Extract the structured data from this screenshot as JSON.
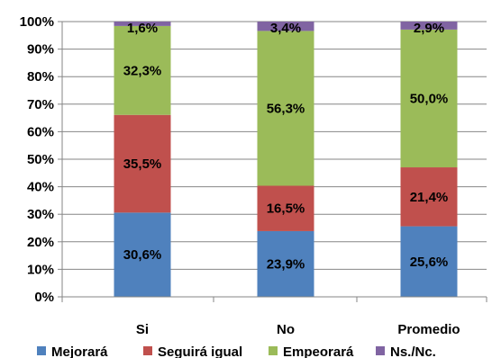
{
  "chart_data": {
    "type": "bar",
    "stacked": true,
    "percent": true,
    "categories": [
      "Si",
      "No",
      "Promedio"
    ],
    "series": [
      {
        "name": "Mejorará",
        "color": "#4f81bd",
        "values": [
          30.6,
          23.9,
          25.6
        ],
        "labels": [
          "30,6%",
          "23,9%",
          "25,6%"
        ]
      },
      {
        "name": "Seguirá igual",
        "color": "#c0504d",
        "values": [
          35.5,
          16.5,
          21.4
        ],
        "labels": [
          "35,5%",
          "16,5%",
          "21,4%"
        ]
      },
      {
        "name": "Empeorará",
        "color": "#9bbb59",
        "values": [
          32.3,
          56.3,
          50.0
        ],
        "labels": [
          "32,3%",
          "56,3%",
          "50,0%"
        ]
      },
      {
        "name": "Ns./Nc.",
        "color": "#8064a2",
        "values": [
          1.6,
          3.4,
          2.9
        ],
        "labels": [
          "1,6%",
          "3,4%",
          "2,9%"
        ]
      }
    ],
    "ylim": [
      0,
      100
    ],
    "yticks": [
      "0%",
      "10%",
      "20%",
      "30%",
      "40%",
      "50%",
      "60%",
      "70%",
      "80%",
      "90%",
      "100%"
    ],
    "grid": true,
    "legend_position": "bottom",
    "title": "",
    "xlabel": "",
    "ylabel": ""
  }
}
